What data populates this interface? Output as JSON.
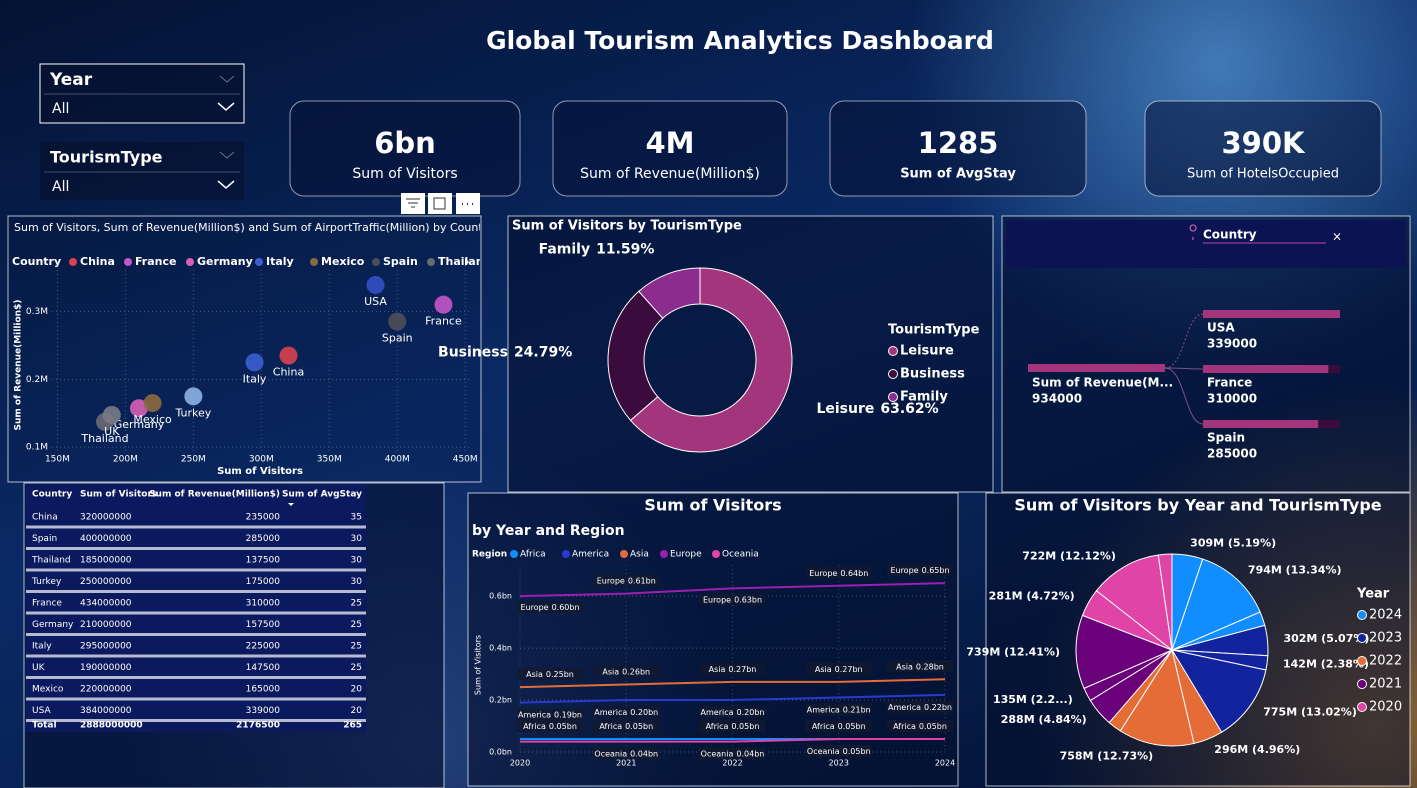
{
  "title": "Global Tourism Analytics Dashboard",
  "slicers": [
    {
      "label": "Year",
      "value": "All"
    },
    {
      "label": "TourismType",
      "value": "All"
    }
  ],
  "cards": [
    {
      "value": "6bn",
      "label": "Sum of Visitors"
    },
    {
      "value": "4M",
      "label": "Sum of Revenue(Million$)"
    },
    {
      "value": "1285",
      "label": "Sum of AvgStay"
    },
    {
      "value": "390K",
      "label": "Sum of HotelsOccupied"
    }
  ],
  "table": {
    "columns": [
      "Country",
      "Sum of Visitors",
      "Sum of Revenue(Million$)",
      "Sum of AvgStay"
    ],
    "rows": [
      [
        "China",
        320000000,
        235000,
        35
      ],
      [
        "Spain",
        400000000,
        285000,
        30
      ],
      [
        "Thailand",
        185000000,
        137500,
        30
      ],
      [
        "Turkey",
        250000000,
        175000,
        30
      ],
      [
        "France",
        434000000,
        310000,
        25
      ],
      [
        "Germany",
        210000000,
        157500,
        25
      ],
      [
        "Italy",
        295000000,
        225000,
        25
      ],
      [
        "UK",
        190000000,
        147500,
        25
      ],
      [
        "Mexico",
        220000000,
        165000,
        20
      ],
      [
        "USA",
        384000000,
        339000,
        20
      ]
    ],
    "total": [
      "Total",
      2888000000,
      2176500,
      265
    ]
  },
  "chart_data": [
    {
      "type": "scatter",
      "title": "Sum of Visitors, Sum of Revenue(Million$) and Sum of AirportTraffic(Million) by Country",
      "legend_title": "Country",
      "x_label": "Sum of Visitors",
      "y_label": "Sum of Revenue(Million$)",
      "xlim": [
        146000000,
        455000000
      ],
      "ylim": [
        93000,
        361000
      ],
      "xticks": [
        {
          "value": 150000000,
          "label": "150M"
        },
        {
          "value": 200000000,
          "label": "200M"
        },
        {
          "value": 250000000,
          "label": "250M"
        },
        {
          "value": 300000000,
          "label": "300M"
        },
        {
          "value": 350000000,
          "label": "350M"
        },
        {
          "value": 400000000,
          "label": "400M"
        },
        {
          "value": 450000000,
          "label": "450M"
        }
      ],
      "yticks": [
        {
          "value": 100000,
          "label": "0.1M"
        },
        {
          "value": 200000,
          "label": "0.2M"
        },
        {
          "value": 300000,
          "label": "0.3M"
        }
      ],
      "grid": true,
      "series": [
        {
          "name": "China",
          "color": "#d9414f",
          "x": [
            320000000
          ],
          "values": [
            235000
          ]
        },
        {
          "name": "France",
          "color": "#c556c8",
          "x": [
            434000000
          ],
          "values": [
            310000
          ]
        },
        {
          "name": "Germany",
          "color": "#d95fb5",
          "x": [
            210000000
          ],
          "values": [
            157500
          ]
        },
        {
          "name": "Italy",
          "color": "#3b5fd0",
          "x": [
            295000000
          ],
          "values": [
            225000
          ]
        },
        {
          "name": "Mexico",
          "color": "#8b6a3e",
          "x": [
            220000000
          ],
          "values": [
            165000
          ]
        },
        {
          "name": "Spain",
          "color": "#4e4e58",
          "x": [
            400000000
          ],
          "values": [
            285000
          ]
        },
        {
          "name": "Thailand",
          "color": "#6a6a74",
          "x": [
            185000000
          ],
          "values": [
            137500
          ]
        },
        {
          "name": "Turkey",
          "color": "#8fb2e6",
          "x": [
            250000000
          ],
          "values": [
            175000
          ]
        },
        {
          "name": "UK",
          "color": "#7a7a84",
          "x": [
            190000000
          ],
          "values": [
            147500
          ]
        },
        {
          "name": "USA",
          "color": "#3350c4",
          "x": [
            384000000
          ],
          "values": [
            339000
          ]
        }
      ]
    },
    {
      "type": "donut",
      "title": "Sum of Visitors by TourismType",
      "legend_title": "TourismType",
      "categories": [
        "Leisure",
        "Business",
        "Family"
      ],
      "values": [
        63.62,
        24.79,
        11.59
      ],
      "value_labels": [
        "63.62%",
        "24.79%",
        "11.59%"
      ],
      "colors": [
        "#a3357d",
        "#3a0b3c",
        "#8c2c8e"
      ]
    },
    {
      "type": "decomposition",
      "filter_label": "Country",
      "root": {
        "label": "Sum of Revenue(M...",
        "value": 934000
      },
      "categories": [
        "USA",
        "France",
        "Spain"
      ],
      "values": [
        339000,
        310000,
        285000
      ],
      "color": "#a3357d"
    },
    {
      "type": "line",
      "title": "Sum of Visitors",
      "subtitle": "by Year and Region",
      "legend_title": "Region",
      "y_label": "Sum of Visitors",
      "x": [
        2020,
        2021,
        2022,
        2023,
        2024
      ],
      "xlim": [
        2020,
        2024
      ],
      "xticks": [
        2020,
        2021,
        2022,
        2023,
        2024
      ],
      "ylim": [
        0,
        0.72
      ],
      "yticks": [
        {
          "value": 0,
          "label": "0.0bn"
        },
        {
          "value": 0.2,
          "label": "0.2bn"
        },
        {
          "value": 0.4,
          "label": "0.4bn"
        },
        {
          "value": 0.6,
          "label": "0.6bn"
        }
      ],
      "grid": true,
      "series": [
        {
          "name": "Africa",
          "color": "#118dff",
          "values": [
            0.05,
            0.05,
            0.05,
            0.05,
            0.05
          ],
          "value_labels": [
            "0.05bn",
            "0.05bn",
            "0.05bn",
            "0.05bn",
            "0.05bn"
          ]
        },
        {
          "name": "America",
          "color": "#2a3ad0",
          "values": [
            0.19,
            0.2,
            0.2,
            0.21,
            0.22
          ],
          "value_labels": [
            "0.19bn",
            "0.20bn",
            "0.20bn",
            "0.21bn",
            "0.22bn"
          ]
        },
        {
          "name": "Asia",
          "color": "#e66c37",
          "values": [
            0.25,
            0.26,
            0.27,
            0.27,
            0.28
          ],
          "value_labels": [
            "0.25bn",
            "0.26bn",
            "0.27bn",
            "0.27bn",
            "0.28bn"
          ]
        },
        {
          "name": "Europe",
          "color": "#9b1fb0",
          "values": [
            0.6,
            0.61,
            0.63,
            0.64,
            0.65
          ],
          "value_labels": [
            "0.60bn",
            "0.61bn",
            "0.63bn",
            "0.64bn",
            "0.65bn"
          ]
        },
        {
          "name": "Oceania",
          "color": "#e044a7",
          "values": [
            0.04,
            0.04,
            0.04,
            0.05,
            0.05
          ],
          "value_labels": [
            null,
            "0.04bn",
            "0.04bn",
            "0.05bn",
            null
          ]
        }
      ]
    },
    {
      "type": "pie",
      "title": "Sum of Visitors by Year and TourismType",
      "legend_title": "Year",
      "series": [
        {
          "name": "2024",
          "color": "#118dff",
          "values": [
            309,
            794,
            140
          ],
          "value_labels": [
            "309M (5.19%)",
            "794M (13.34%)",
            null
          ]
        },
        {
          "name": "2023",
          "color": "#12239e",
          "values": [
            302,
            142,
            775
          ],
          "value_labels": [
            "302M (5.07%)",
            "142M (2.38%)",
            "775M (13.02%)"
          ]
        },
        {
          "name": "2022",
          "color": "#e66c37",
          "values": [
            296,
            758,
            137
          ],
          "value_labels": [
            "296M (4.96%)",
            "758M (12.73%)",
            null
          ]
        },
        {
          "name": "2021",
          "color": "#6b007b",
          "values": [
            288,
            135,
            739
          ],
          "value_labels": [
            "288M (4.84%)",
            "135M (2.2...)",
            "739M (12.41%)"
          ]
        },
        {
          "name": "2020",
          "color": "#e044a7",
          "values": [
            281,
            722,
            136
          ],
          "value_labels": [
            "281M (4.72%)",
            "722M (12.12%)",
            null
          ]
        }
      ]
    }
  ]
}
